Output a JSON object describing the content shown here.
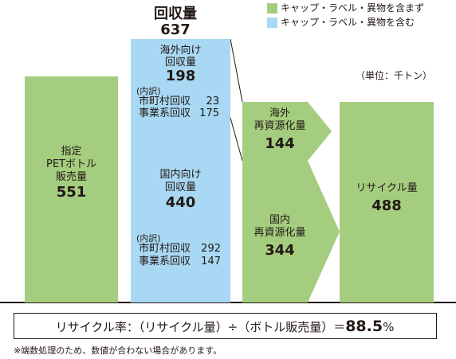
{
  "chart_data": {
    "type": "bar",
    "unit": "（単位：千トン）",
    "legend": [
      {
        "label": "キャップ・ラベル・異物を含まず",
        "color": "#a5cd7f"
      },
      {
        "label": "キャップ・ラベル・異物を含む",
        "color": "#a8d8f3"
      }
    ],
    "total": {
      "label": "回収量",
      "value": "637"
    },
    "bars": [
      {
        "label_lines": [
          "指定",
          "PETボトル",
          "販売量"
        ],
        "value": "551",
        "numeric": 551
      },
      {
        "label_lines": [
          "海外向け",
          "回収量"
        ],
        "value": "198",
        "numeric": 198,
        "breakdown_title": "(内訳)",
        "breakdown": [
          {
            "label": "市町村回収",
            "value": "23"
          },
          {
            "label": "事業系回収",
            "value": "175"
          }
        ]
      },
      {
        "label_lines": [
          "国内向け",
          "回収量"
        ],
        "value": "440",
        "numeric": 440,
        "breakdown_title": "(内訳)",
        "breakdown": [
          {
            "label": "市町村回収",
            "value": "292"
          },
          {
            "label": "事業系回収",
            "value": "147"
          }
        ]
      },
      {
        "label_lines": [
          "海外",
          "再資源化量"
        ],
        "value": "144",
        "numeric": 144
      },
      {
        "label_lines": [
          "国内",
          "再資源化量"
        ],
        "value": "344",
        "numeric": 344
      },
      {
        "label_lines": [
          "リサイクル量"
        ],
        "value": "488",
        "numeric": 488
      }
    ]
  },
  "formula": {
    "text": "リサイクル率：（リサイクル量）÷（ボトル販売量）＝",
    "value": "88.5",
    "suffix": "%"
  },
  "footnote": "※端数処理のため、数値が合わない場合があります。"
}
